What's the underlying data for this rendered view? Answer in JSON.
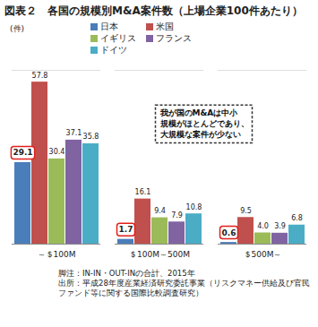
{
  "chart_data": {
    "type": "bar",
    "title": "図表２　各国の規模別M&A案件数（上場企業100件あたり）",
    "ylabel": "(件)",
    "categories": [
      "～＄100M",
      "＄100M～500M",
      "＄500M～"
    ],
    "series": [
      {
        "name": "日本",
        "color": "#4a7ebb",
        "values": [
          29.1,
          1.7,
          0.6
        ],
        "value_labels": [
          "29.1",
          "1.7",
          "0.6"
        ]
      },
      {
        "name": "米国",
        "color": "#c0504d",
        "values": [
          57.8,
          16.1,
          9.5
        ],
        "value_labels": [
          "57.8",
          "16.1",
          "9.5"
        ]
      },
      {
        "name": "イギリス",
        "color": "#9bbb59",
        "values": [
          30.4,
          9.4,
          4.0
        ],
        "value_labels": [
          "30.4",
          "9.4",
          "4.0"
        ]
      },
      {
        "name": "フランス",
        "color": "#8064a2",
        "values": [
          37.1,
          7.9,
          3.9
        ],
        "value_labels": [
          "37.1",
          "7.9",
          "3.9"
        ]
      },
      {
        "name": "ドイツ",
        "color": "#4bacc6",
        "values": [
          35.8,
          10.8,
          6.8
        ],
        "value_labels": [
          "35.8",
          "10.8",
          "6.8"
        ]
      }
    ],
    "ylim": [
      0,
      62
    ],
    "grid": false,
    "legend": "top",
    "data_labels": true,
    "tick_labels": "x",
    "annotations": [
      "我が国のM&Aは中小\n規模がほとんどであり、\n大規模な案件が少ない"
    ],
    "caption": [
      "脚注：IN-IN・OUT-INの合計、2015年",
      "出所：平成28年度産業経済研究委託事業（リスクマネー供給及び官民ファンド等に関する国際比較調査研究）"
    ]
  }
}
